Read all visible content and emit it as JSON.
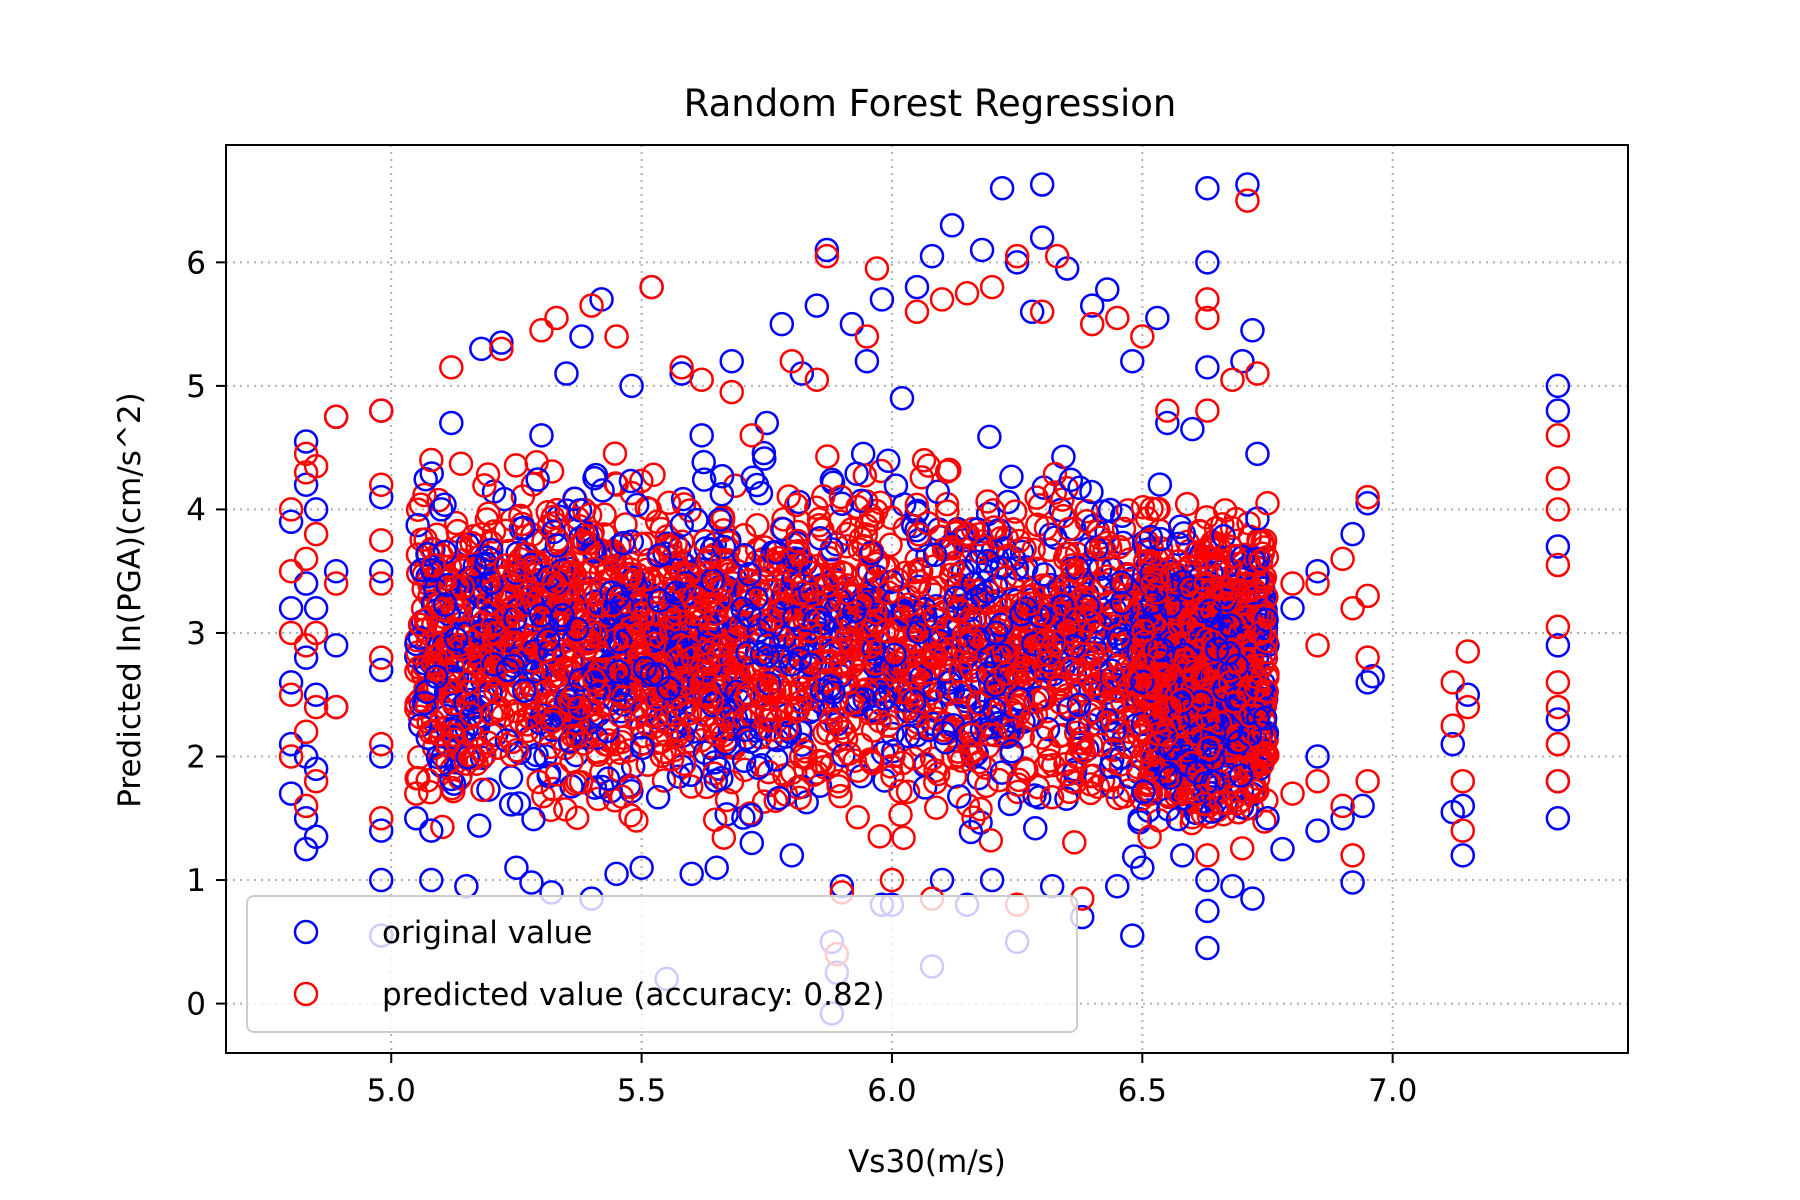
{
  "chart_data": {
    "type": "scatter",
    "title": "Random Forest Regression",
    "xlabel": "Vs30(m/s)",
    "ylabel": "Predicted ln(PGA)(cm/s^2)",
    "xlim": [
      4.67,
      7.47
    ],
    "ylim": [
      -0.4,
      6.95
    ],
    "xticks": [
      5.0,
      5.5,
      6.0,
      6.5,
      7.0
    ],
    "xtick_labels": [
      "5.0",
      "5.5",
      "6.0",
      "6.5",
      "7.0"
    ],
    "yticks": [
      0,
      1,
      2,
      3,
      4,
      5,
      6
    ],
    "ytick_labels": [
      "0",
      "1",
      "2",
      "3",
      "4",
      "5",
      "6"
    ],
    "grid": true,
    "legend_position": "lower-left",
    "series": [
      {
        "name": "original value",
        "color": "#0000ff",
        "marker": "open-circle",
        "points": [
          [
            4.8,
            1.7
          ],
          [
            4.8,
            2.1
          ],
          [
            4.8,
            2.6
          ],
          [
            4.8,
            3.2
          ],
          [
            4.8,
            3.9
          ],
          [
            4.83,
            1.25
          ],
          [
            4.83,
            1.5
          ],
          [
            4.83,
            2.0
          ],
          [
            4.83,
            2.8
          ],
          [
            4.83,
            3.4
          ],
          [
            4.83,
            4.2
          ],
          [
            4.83,
            4.55
          ],
          [
            4.85,
            1.35
          ],
          [
            4.85,
            1.9
          ],
          [
            4.85,
            2.5
          ],
          [
            4.85,
            3.2
          ],
          [
            4.85,
            4.0
          ],
          [
            4.89,
            2.4
          ],
          [
            4.89,
            2.9
          ],
          [
            4.89,
            3.5
          ],
          [
            4.89,
            4.75
          ],
          [
            4.98,
            0.55
          ],
          [
            4.98,
            1.0
          ],
          [
            4.98,
            1.4
          ],
          [
            4.98,
            2.0
          ],
          [
            4.98,
            2.7
          ],
          [
            4.98,
            3.5
          ],
          [
            4.98,
            4.1
          ],
          [
            4.98,
            4.8
          ],
          [
            5.05,
            1.5
          ],
          [
            5.08,
            1.0
          ],
          [
            5.08,
            1.4
          ],
          [
            5.1,
            4.0
          ],
          [
            5.12,
            4.7
          ],
          [
            5.15,
            0.95
          ],
          [
            5.18,
            5.3
          ],
          [
            5.22,
            5.35
          ],
          [
            5.25,
            1.1
          ],
          [
            5.28,
            0.98
          ],
          [
            5.3,
            4.6
          ],
          [
            5.32,
            0.9
          ],
          [
            5.35,
            5.1
          ],
          [
            5.38,
            5.4
          ],
          [
            5.4,
            0.85
          ],
          [
            5.42,
            5.7
          ],
          [
            5.45,
            1.05
          ],
          [
            5.48,
            5.0
          ],
          [
            5.5,
            1.1
          ],
          [
            5.52,
            5.8
          ],
          [
            5.55,
            0.2
          ],
          [
            5.58,
            5.1
          ],
          [
            5.6,
            1.05
          ],
          [
            5.62,
            4.6
          ],
          [
            5.65,
            1.1
          ],
          [
            5.68,
            5.2
          ],
          [
            5.72,
            1.3
          ],
          [
            5.75,
            4.7
          ],
          [
            5.78,
            5.5
          ],
          [
            5.8,
            1.2
          ],
          [
            5.82,
            5.1
          ],
          [
            5.85,
            5.65
          ],
          [
            5.87,
            6.1
          ],
          [
            5.88,
            -0.08
          ],
          [
            5.88,
            0.5
          ],
          [
            5.89,
            0.25
          ],
          [
            5.9,
            0.95
          ],
          [
            5.92,
            5.5
          ],
          [
            5.95,
            5.2
          ],
          [
            5.98,
            0.8
          ],
          [
            5.98,
            5.7
          ],
          [
            6.0,
            0.8
          ],
          [
            6.02,
            4.9
          ],
          [
            6.05,
            5.8
          ],
          [
            6.08,
            6.05
          ],
          [
            6.08,
            0.3
          ],
          [
            6.1,
            1.0
          ],
          [
            6.12,
            6.3
          ],
          [
            6.15,
            0.8
          ],
          [
            6.18,
            6.1
          ],
          [
            6.2,
            1.0
          ],
          [
            6.22,
            6.6
          ],
          [
            6.25,
            0.5
          ],
          [
            6.25,
            6.0
          ],
          [
            6.28,
            5.6
          ],
          [
            6.3,
            6.63
          ],
          [
            6.3,
            6.2
          ],
          [
            6.32,
            0.95
          ],
          [
            6.35,
            5.95
          ],
          [
            6.38,
            0.7
          ],
          [
            6.4,
            5.65
          ],
          [
            6.43,
            5.78
          ],
          [
            6.45,
            0.95
          ],
          [
            6.48,
            0.55
          ],
          [
            6.48,
            5.2
          ],
          [
            6.5,
            1.1
          ],
          [
            6.53,
            5.55
          ],
          [
            6.55,
            4.7
          ],
          [
            6.58,
            1.2
          ],
          [
            6.6,
            4.65
          ],
          [
            6.63,
            0.45
          ],
          [
            6.63,
            0.75
          ],
          [
            6.63,
            1.0
          ],
          [
            6.63,
            5.15
          ],
          [
            6.63,
            6.0
          ],
          [
            6.63,
            6.6
          ],
          [
            6.68,
            0.95
          ],
          [
            6.7,
            5.2
          ],
          [
            6.71,
            6.63
          ],
          [
            6.72,
            0.85
          ],
          [
            6.72,
            5.45
          ],
          [
            6.73,
            4.45
          ],
          [
            6.75,
            1.5
          ],
          [
            6.78,
            1.25
          ],
          [
            6.8,
            3.2
          ],
          [
            6.85,
            1.4
          ],
          [
            6.85,
            2.0
          ],
          [
            6.85,
            3.5
          ],
          [
            6.9,
            1.5
          ],
          [
            6.92,
            0.98
          ],
          [
            6.92,
            3.8
          ],
          [
            6.94,
            1.6
          ],
          [
            6.95,
            2.6
          ],
          [
            6.95,
            4.05
          ],
          [
            6.96,
            2.65
          ],
          [
            7.12,
            1.55
          ],
          [
            7.12,
            2.1
          ],
          [
            7.14,
            1.2
          ],
          [
            7.14,
            1.6
          ],
          [
            7.15,
            2.5
          ],
          [
            7.33,
            1.5
          ],
          [
            7.33,
            1.8
          ],
          [
            7.33,
            2.3
          ],
          [
            7.33,
            2.9
          ],
          [
            7.33,
            3.7
          ],
          [
            7.33,
            4.8
          ],
          [
            7.33,
            5.0
          ]
        ]
      },
      {
        "name": "predicted value (accuracy: 0.82)",
        "color": "#ff0000",
        "marker": "open-circle",
        "points": [
          [
            4.8,
            2.0
          ],
          [
            4.8,
            2.5
          ],
          [
            4.8,
            3.0
          ],
          [
            4.8,
            3.5
          ],
          [
            4.8,
            4.0
          ],
          [
            4.83,
            1.6
          ],
          [
            4.83,
            2.2
          ],
          [
            4.83,
            2.9
          ],
          [
            4.83,
            3.6
          ],
          [
            4.83,
            4.3
          ],
          [
            4.83,
            4.45
          ],
          [
            4.85,
            1.8
          ],
          [
            4.85,
            2.4
          ],
          [
            4.85,
            3.0
          ],
          [
            4.85,
            3.8
          ],
          [
            4.85,
            4.35
          ],
          [
            4.89,
            2.4
          ],
          [
            4.89,
            3.4
          ],
          [
            4.89,
            4.75
          ],
          [
            4.98,
            1.5
          ],
          [
            4.98,
            2.1
          ],
          [
            4.98,
            2.8
          ],
          [
            4.98,
            3.4
          ],
          [
            4.98,
            3.75
          ],
          [
            4.98,
            4.2
          ],
          [
            4.98,
            4.8
          ],
          [
            5.05,
            1.7
          ],
          [
            5.08,
            4.4
          ],
          [
            5.12,
            5.15
          ],
          [
            5.22,
            5.3
          ],
          [
            5.3,
            5.45
          ],
          [
            5.33,
            5.55
          ],
          [
            5.4,
            5.65
          ],
          [
            5.45,
            5.4
          ],
          [
            5.52,
            5.8
          ],
          [
            5.58,
            5.15
          ],
          [
            5.62,
            5.05
          ],
          [
            5.68,
            4.95
          ],
          [
            5.72,
            4.6
          ],
          [
            5.8,
            5.2
          ],
          [
            5.85,
            5.05
          ],
          [
            5.87,
            6.05
          ],
          [
            5.89,
            0.4
          ],
          [
            5.9,
            0.9
          ],
          [
            5.95,
            5.4
          ],
          [
            5.97,
            5.95
          ],
          [
            6.0,
            1.0
          ],
          [
            6.05,
            5.6
          ],
          [
            6.08,
            0.85
          ],
          [
            6.1,
            5.7
          ],
          [
            6.15,
            5.75
          ],
          [
            6.2,
            5.8
          ],
          [
            6.25,
            0.8
          ],
          [
            6.25,
            6.05
          ],
          [
            6.3,
            5.6
          ],
          [
            6.33,
            6.05
          ],
          [
            6.38,
            0.85
          ],
          [
            6.4,
            5.5
          ],
          [
            6.45,
            5.55
          ],
          [
            6.5,
            5.4
          ],
          [
            6.55,
            4.8
          ],
          [
            6.63,
            1.2
          ],
          [
            6.63,
            4.8
          ],
          [
            6.63,
            5.55
          ],
          [
            6.63,
            5.7
          ],
          [
            6.68,
            5.05
          ],
          [
            6.71,
            6.5
          ],
          [
            6.73,
            5.1
          ],
          [
            6.75,
            4.05
          ],
          [
            6.8,
            1.7
          ],
          [
            6.8,
            3.4
          ],
          [
            6.85,
            1.8
          ],
          [
            6.85,
            2.9
          ],
          [
            6.85,
            3.4
          ],
          [
            6.9,
            1.6
          ],
          [
            6.9,
            3.6
          ],
          [
            6.92,
            1.2
          ],
          [
            6.92,
            3.2
          ],
          [
            6.95,
            1.8
          ],
          [
            6.95,
            2.8
          ],
          [
            6.95,
            3.3
          ],
          [
            6.95,
            4.1
          ],
          [
            7.12,
            2.25
          ],
          [
            7.12,
            2.6
          ],
          [
            7.14,
            1.4
          ],
          [
            7.14,
            1.8
          ],
          [
            7.15,
            2.4
          ],
          [
            7.15,
            2.85
          ],
          [
            7.33,
            1.8
          ],
          [
            7.33,
            2.1
          ],
          [
            7.33,
            2.4
          ],
          [
            7.33,
            2.6
          ],
          [
            7.33,
            3.05
          ],
          [
            7.33,
            3.55
          ],
          [
            7.33,
            4.0
          ],
          [
            7.33,
            4.25
          ],
          [
            7.33,
            4.6
          ]
        ]
      }
    ],
    "dense_regions": [
      {
        "x": [
          5.05,
          5.7
        ],
        "y": [
          1.2,
          4.6
        ],
        "colors": [
          "#0000ff",
          "#ff0000"
        ]
      },
      {
        "x": [
          5.7,
          6.5
        ],
        "y": [
          1.0,
          4.8
        ],
        "colors": [
          "#0000ff",
          "#ff0000"
        ]
      },
      {
        "x": [
          6.5,
          6.75
        ],
        "y": [
          1.1,
          4.3
        ],
        "colors": [
          "#0000ff",
          "#ff0000"
        ]
      }
    ]
  }
}
